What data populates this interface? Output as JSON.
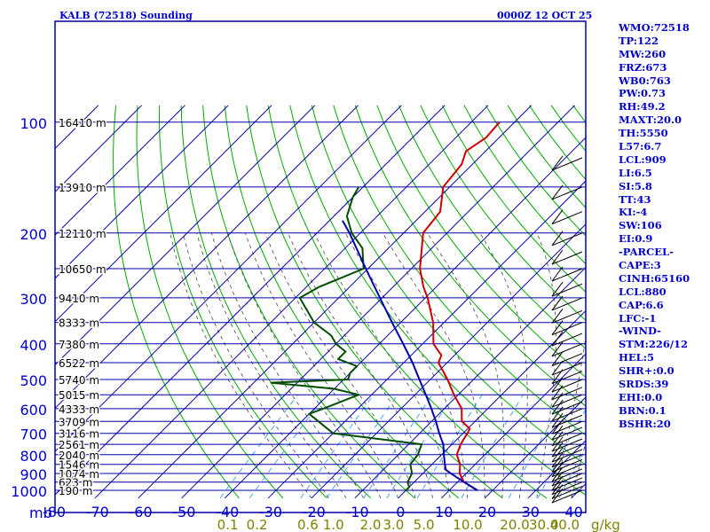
{
  "chart_data": {
    "type": "line",
    "title": "KALB (72518) Sounding",
    "time_label": "0000Z 12 OCT 25",
    "pressure_axis_unit": "mb",
    "mixing_ratio_unit": "g/kg",
    "pressure_ticks": [
      100,
      200,
      300,
      400,
      500,
      600,
      700,
      800,
      900,
      1000
    ],
    "temperature_ticks": [
      -80,
      -70,
      -60,
      -50,
      -40,
      -30,
      -20,
      -10,
      0,
      10,
      20,
      30,
      40
    ],
    "mixing_ratio_labels": [
      "0.1",
      "0.2",
      "0.6",
      "1.0",
      "2.0",
      "3.0",
      "5.0",
      "10.0",
      "20.0",
      "30.0",
      "40.0"
    ],
    "mixing_ratio_values": [
      0.1,
      0.2,
      0.6,
      1.0,
      2.0,
      3.0,
      5.0,
      10.0,
      20.0,
      30.0,
      40.0
    ],
    "height_labels": [
      {
        "p": 100,
        "text": "16410 m"
      },
      {
        "p": 150,
        "text": "13910 m"
      },
      {
        "p": 200,
        "text": "12110 m"
      },
      {
        "p": 250,
        "text": "10650 m"
      },
      {
        "p": 300,
        "text": "9410 m"
      },
      {
        "p": 350,
        "text": "8333 m"
      },
      {
        "p": 400,
        "text": "7380 m"
      },
      {
        "p": 450,
        "text": "6522 m"
      },
      {
        "p": 500,
        "text": "5740 m"
      },
      {
        "p": 550,
        "text": "5015 m"
      },
      {
        "p": 600,
        "text": "4333 m"
      },
      {
        "p": 650,
        "text": "3709 m"
      },
      {
        "p": 700,
        "text": "3116 m"
      },
      {
        "p": 750,
        "text": "2561 m"
      },
      {
        "p": 800,
        "text": "2040 m"
      },
      {
        "p": 850,
        "text": "1546 m"
      },
      {
        "p": 900,
        "text": "1074 m"
      },
      {
        "p": 950,
        "text": "623 m"
      },
      {
        "p": 1000,
        "text": "190 m"
      }
    ],
    "series": [
      {
        "name": "Temperature",
        "color": "#cc0000",
        "points": [
          {
            "p": 1000,
            "t": 16.5
          },
          {
            "p": 950,
            "t": 11.5
          },
          {
            "p": 900,
            "t": 8.5
          },
          {
            "p": 850,
            "t": 6.5
          },
          {
            "p": 800,
            "t": 3.5
          },
          {
            "p": 750,
            "t": 2.0
          },
          {
            "p": 700,
            "t": 1.0
          },
          {
            "p": 680,
            "t": 0.5
          },
          {
            "p": 650,
            "t": -3.0
          },
          {
            "p": 600,
            "t": -6.0
          },
          {
            "p": 550,
            "t": -11.0
          },
          {
            "p": 500,
            "t": -16.0
          },
          {
            "p": 450,
            "t": -22.0
          },
          {
            "p": 430,
            "t": -23.0
          },
          {
            "p": 400,
            "t": -27.5
          },
          {
            "p": 350,
            "t": -32.5
          },
          {
            "p": 300,
            "t": -39.5
          },
          {
            "p": 280,
            "t": -43.0
          },
          {
            "p": 250,
            "t": -48.0
          },
          {
            "p": 200,
            "t": -55.5
          },
          {
            "p": 175,
            "t": -56.5
          },
          {
            "p": 150,
            "t": -61.5
          },
          {
            "p": 130,
            "t": -62.5
          },
          {
            "p": 120,
            "t": -64.5
          },
          {
            "p": 110,
            "t": -63.0
          },
          {
            "p": 100,
            "t": -63.5
          }
        ]
      },
      {
        "name": "Dewpoint",
        "color": "#004d00",
        "points": [
          {
            "p": 1000,
            "t": 0.0
          },
          {
            "p": 980,
            "t": 0.0
          },
          {
            "p": 950,
            "t": -1.5
          },
          {
            "p": 900,
            "t": -2.5
          },
          {
            "p": 850,
            "t": -5.0
          },
          {
            "p": 800,
            "t": -5.5
          },
          {
            "p": 750,
            "t": -7.0
          },
          {
            "p": 700,
            "t": -30.0
          },
          {
            "p": 620,
            "t": -40.0
          },
          {
            "p": 600,
            "t": -38.0
          },
          {
            "p": 550,
            "t": -33.0
          },
          {
            "p": 530,
            "t": -40.0
          },
          {
            "p": 510,
            "t": -56.0
          },
          {
            "p": 500,
            "t": -39.0
          },
          {
            "p": 480,
            "t": -40.0
          },
          {
            "p": 460,
            "t": -40.0
          },
          {
            "p": 440,
            "t": -46.0
          },
          {
            "p": 420,
            "t": -46.0
          },
          {
            "p": 400,
            "t": -50.0
          },
          {
            "p": 380,
            "t": -53.0
          },
          {
            "p": 350,
            "t": -60.0
          },
          {
            "p": 300,
            "t": -69.0
          },
          {
            "p": 280,
            "t": -67.0
          },
          {
            "p": 250,
            "t": -61.0
          },
          {
            "p": 220,
            "t": -66.0
          },
          {
            "p": 200,
            "t": -72.0
          },
          {
            "p": 180,
            "t": -77.0
          },
          {
            "p": 160,
            "t": -80.0
          },
          {
            "p": 150,
            "t": -81.0
          }
        ]
      },
      {
        "name": "Parcel",
        "color": "#0000aa",
        "points": [
          {
            "p": 1000,
            "t": 16.5
          },
          {
            "p": 950,
            "t": 11.5
          },
          {
            "p": 900,
            "t": 6.5
          },
          {
            "p": 880,
            "t": 4.5
          },
          {
            "p": 850,
            "t": 3.0
          },
          {
            "p": 800,
            "t": 0.5
          },
          {
            "p": 750,
            "t": -2.0
          },
          {
            "p": 700,
            "t": -5.5
          },
          {
            "p": 650,
            "t": -9.0
          },
          {
            "p": 600,
            "t": -13.0
          },
          {
            "p": 550,
            "t": -17.5
          },
          {
            "p": 500,
            "t": -22.5
          },
          {
            "p": 450,
            "t": -28.0
          },
          {
            "p": 400,
            "t": -34.5
          },
          {
            "p": 350,
            "t": -42.0
          },
          {
            "p": 300,
            "t": -50.5
          },
          {
            "p": 250,
            "t": -60.5
          },
          {
            "p": 200,
            "t": -72.5
          },
          {
            "p": 185,
            "t": -77.0
          }
        ]
      }
    ]
  },
  "indices": {
    "header_wmo": "WMO:72518",
    "tp": "TP:122",
    "mw": "MW:260",
    "frz": "FRZ:673",
    "wb0": "WB0:763",
    "pw": "PW:0.73",
    "rh": "RH:49.2",
    "maxt": "MAXT:20.0",
    "th": "TH:5550",
    "l57": "L57:6.7",
    "lcl": "LCL:909",
    "li": "LI:6.5",
    "si": "SI:5.8",
    "tt": "TT:43",
    "ki": "KI:-4",
    "sw": "SW:106",
    "ei": "EI:0.9",
    "parcel_header": "-PARCEL-",
    "cape": "CAPE:3",
    "cinh": "CINH:65160",
    "parcel_lcl": "LCL:880",
    "cap": "CAP:6.6",
    "lfc": "LFC:-1",
    "wind_header": "-WIND-",
    "stm": "STM:226/12",
    "hel": "HEL:5",
    "shr": "SHR+:0.0",
    "srds": "SRDS:39",
    "ehi": "EHI:0.0",
    "brn": "BRN:0.1",
    "bshr": "BSHR:20"
  },
  "colors": {
    "frame": "#0000aa",
    "isotherm": "#0000aa",
    "dry_adiabat": "#00aa00",
    "moist_adiabat": "#444444",
    "mixing_ratio": "#3399ff",
    "axis_text": "#0000cc",
    "mixing_text": "#808000",
    "panel_text": "#0000cc"
  }
}
